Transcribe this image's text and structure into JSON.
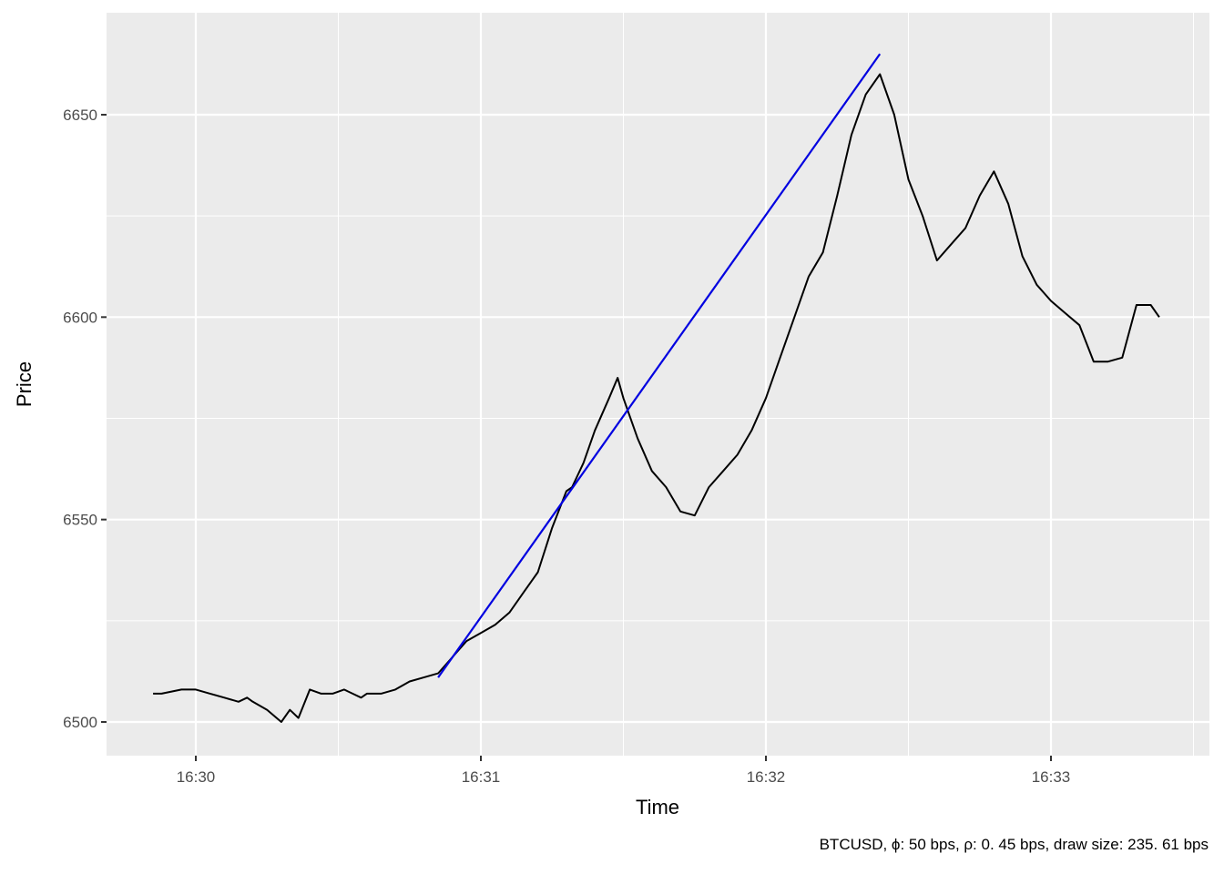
{
  "chart_data": {
    "type": "line",
    "title": "",
    "xlabel": "Time",
    "ylabel": "Price",
    "caption": "BTCUSD, ϕ: 50 bps, ρ: 0. 45 bps, draw size: 235. 61 bps",
    "xlim_minutes": [
      29.7,
      33.5
    ],
    "ylim": [
      6485,
      6675
    ],
    "x_ticks": [
      {
        "label": "16:30",
        "minutes": 30
      },
      {
        "label": "16:31",
        "minutes": 31
      },
      {
        "label": "16:32",
        "minutes": 32
      },
      {
        "label": "16:33",
        "minutes": 33
      }
    ],
    "x_minor_ticks_minutes": [
      30.5,
      31.5,
      32.5,
      33.5
    ],
    "y_ticks": [
      6500,
      6550,
      6600,
      6650
    ],
    "y_minor_ticks": [
      6525,
      6575,
      6625
    ],
    "grid": true,
    "background": "#ebebeb",
    "series": [
      {
        "color": "#000000",
        "x_minutes": [
          29.85,
          29.88,
          29.95,
          30.0,
          30.05,
          30.1,
          30.15,
          30.18,
          30.2,
          30.25,
          30.3,
          30.33,
          30.36,
          30.4,
          30.44,
          30.48,
          30.52,
          30.55,
          30.58,
          30.6,
          30.65,
          30.7,
          30.75,
          30.8,
          30.85,
          30.9,
          30.95,
          31.0,
          31.05,
          31.1,
          31.15,
          31.2,
          31.25,
          31.3,
          31.32,
          31.36,
          31.4,
          31.45,
          31.48,
          31.5,
          31.55,
          31.6,
          31.65,
          31.7,
          31.75,
          31.8,
          31.85,
          31.9,
          31.95,
          32.0,
          32.05,
          32.1,
          32.15,
          32.2,
          32.25,
          32.3,
          32.35,
          32.4,
          32.45,
          32.5,
          32.55,
          32.6,
          32.65,
          32.7,
          32.75,
          32.8,
          32.85,
          32.9,
          32.95,
          33.0,
          33.05,
          33.1,
          33.15,
          33.2,
          33.25,
          33.3,
          33.35,
          33.38
        ],
        "y": [
          6507,
          6507,
          6508,
          6508,
          6507,
          6506,
          6505,
          6506,
          6505,
          6503,
          6500,
          6503,
          6501,
          6508,
          6507,
          6507,
          6508,
          6507,
          6506,
          6507,
          6507,
          6508,
          6510,
          6511,
          6512,
          6516,
          6520,
          6522,
          6524,
          6527,
          6532,
          6537,
          6548,
          6557,
          6558,
          6564,
          6572,
          6580,
          6585,
          6580,
          6570,
          6562,
          6558,
          6552,
          6551,
          6558,
          6562,
          6566,
          6572,
          6580,
          6590,
          6600,
          6610,
          6616,
          6630,
          6645,
          6655,
          6660,
          6650,
          6634,
          6625,
          6614,
          6618,
          6622,
          6630,
          6636,
          6628,
          6615,
          6608,
          6604,
          6601,
          6598,
          6589,
          6589,
          6590,
          6603,
          6603,
          6600
        ]
      },
      {
        "color": "#0000e0",
        "x_minutes": [
          30.85,
          32.4
        ],
        "y": [
          6511,
          6665
        ]
      }
    ]
  }
}
